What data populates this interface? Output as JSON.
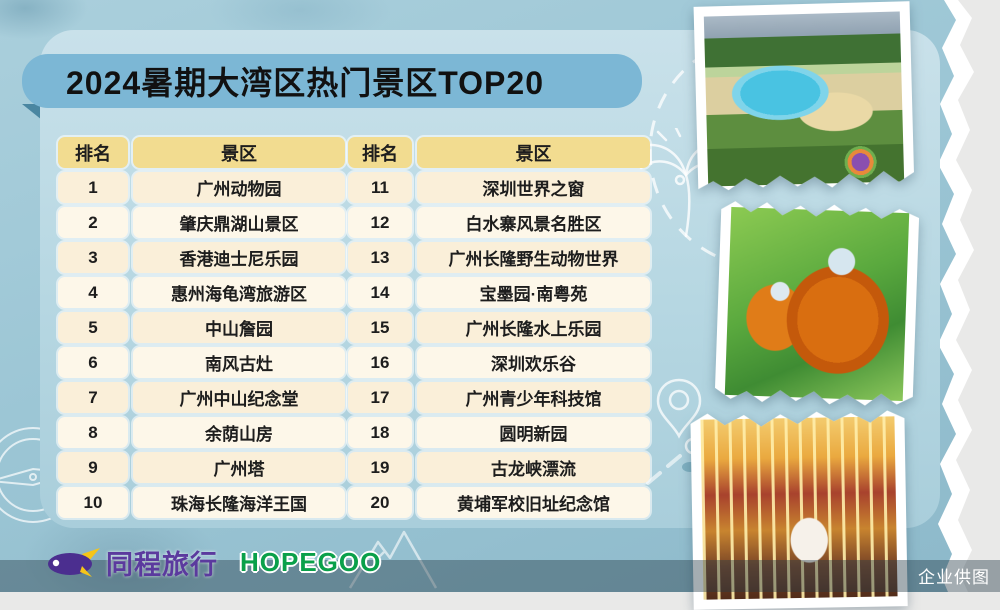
{
  "title": "2024暑期大湾区热门景区TOP20",
  "table": {
    "rank_header": "排名",
    "spot_header": "景区",
    "left_rows": [
      {
        "rank": "1",
        "name": "广州动物园"
      },
      {
        "rank": "2",
        "name": "肇庆鼎湖山景区"
      },
      {
        "rank": "3",
        "name": "香港迪士尼乐园"
      },
      {
        "rank": "4",
        "name": "惠州海龟湾旅游区"
      },
      {
        "rank": "5",
        "name": "中山詹园"
      },
      {
        "rank": "6",
        "name": "南风古灶"
      },
      {
        "rank": "7",
        "name": "广州中山纪念堂"
      },
      {
        "rank": "8",
        "name": "余荫山房"
      },
      {
        "rank": "9",
        "name": "广州塔"
      },
      {
        "rank": "10",
        "name": "珠海长隆海洋王国"
      }
    ],
    "right_rows": [
      {
        "rank": "11",
        "name": "深圳世界之窗"
      },
      {
        "rank": "12",
        "name": "白水寨风景名胜区"
      },
      {
        "rank": "13",
        "name": "广州长隆野生动物世界"
      },
      {
        "rank": "14",
        "name": "宝墨园·南粤苑"
      },
      {
        "rank": "15",
        "name": "广州长隆水上乐园"
      },
      {
        "rank": "16",
        "name": "深圳欢乐谷"
      },
      {
        "rank": "17",
        "name": "广州青少年科技馆"
      },
      {
        "rank": "18",
        "name": "圆明新园"
      },
      {
        "rank": "19",
        "name": "古龙峡漂流"
      },
      {
        "rank": "20",
        "name": "黄埔军校旧址纪念馆"
      }
    ]
  },
  "footer": {
    "tongcheng_logo_text": "同程旅行",
    "hopegoo_logo_text": "HOPEGOO",
    "credit": "企业供图"
  },
  "photos": [
    {
      "name": "water-park-aerial-photo"
    },
    {
      "name": "golden-monkeys-photo"
    },
    {
      "name": "carousel-photo"
    }
  ],
  "colors": {
    "poster_blue": "#9cc6d5",
    "card_blue": "#bcd9e4",
    "ribbon_blue": "#7cb7d5",
    "header_yellow": "#f2dc90",
    "row_cream": "#faefd9",
    "tongcheng_purple": "#5b3a9e",
    "hopegoo_green": "#0aa04a"
  }
}
